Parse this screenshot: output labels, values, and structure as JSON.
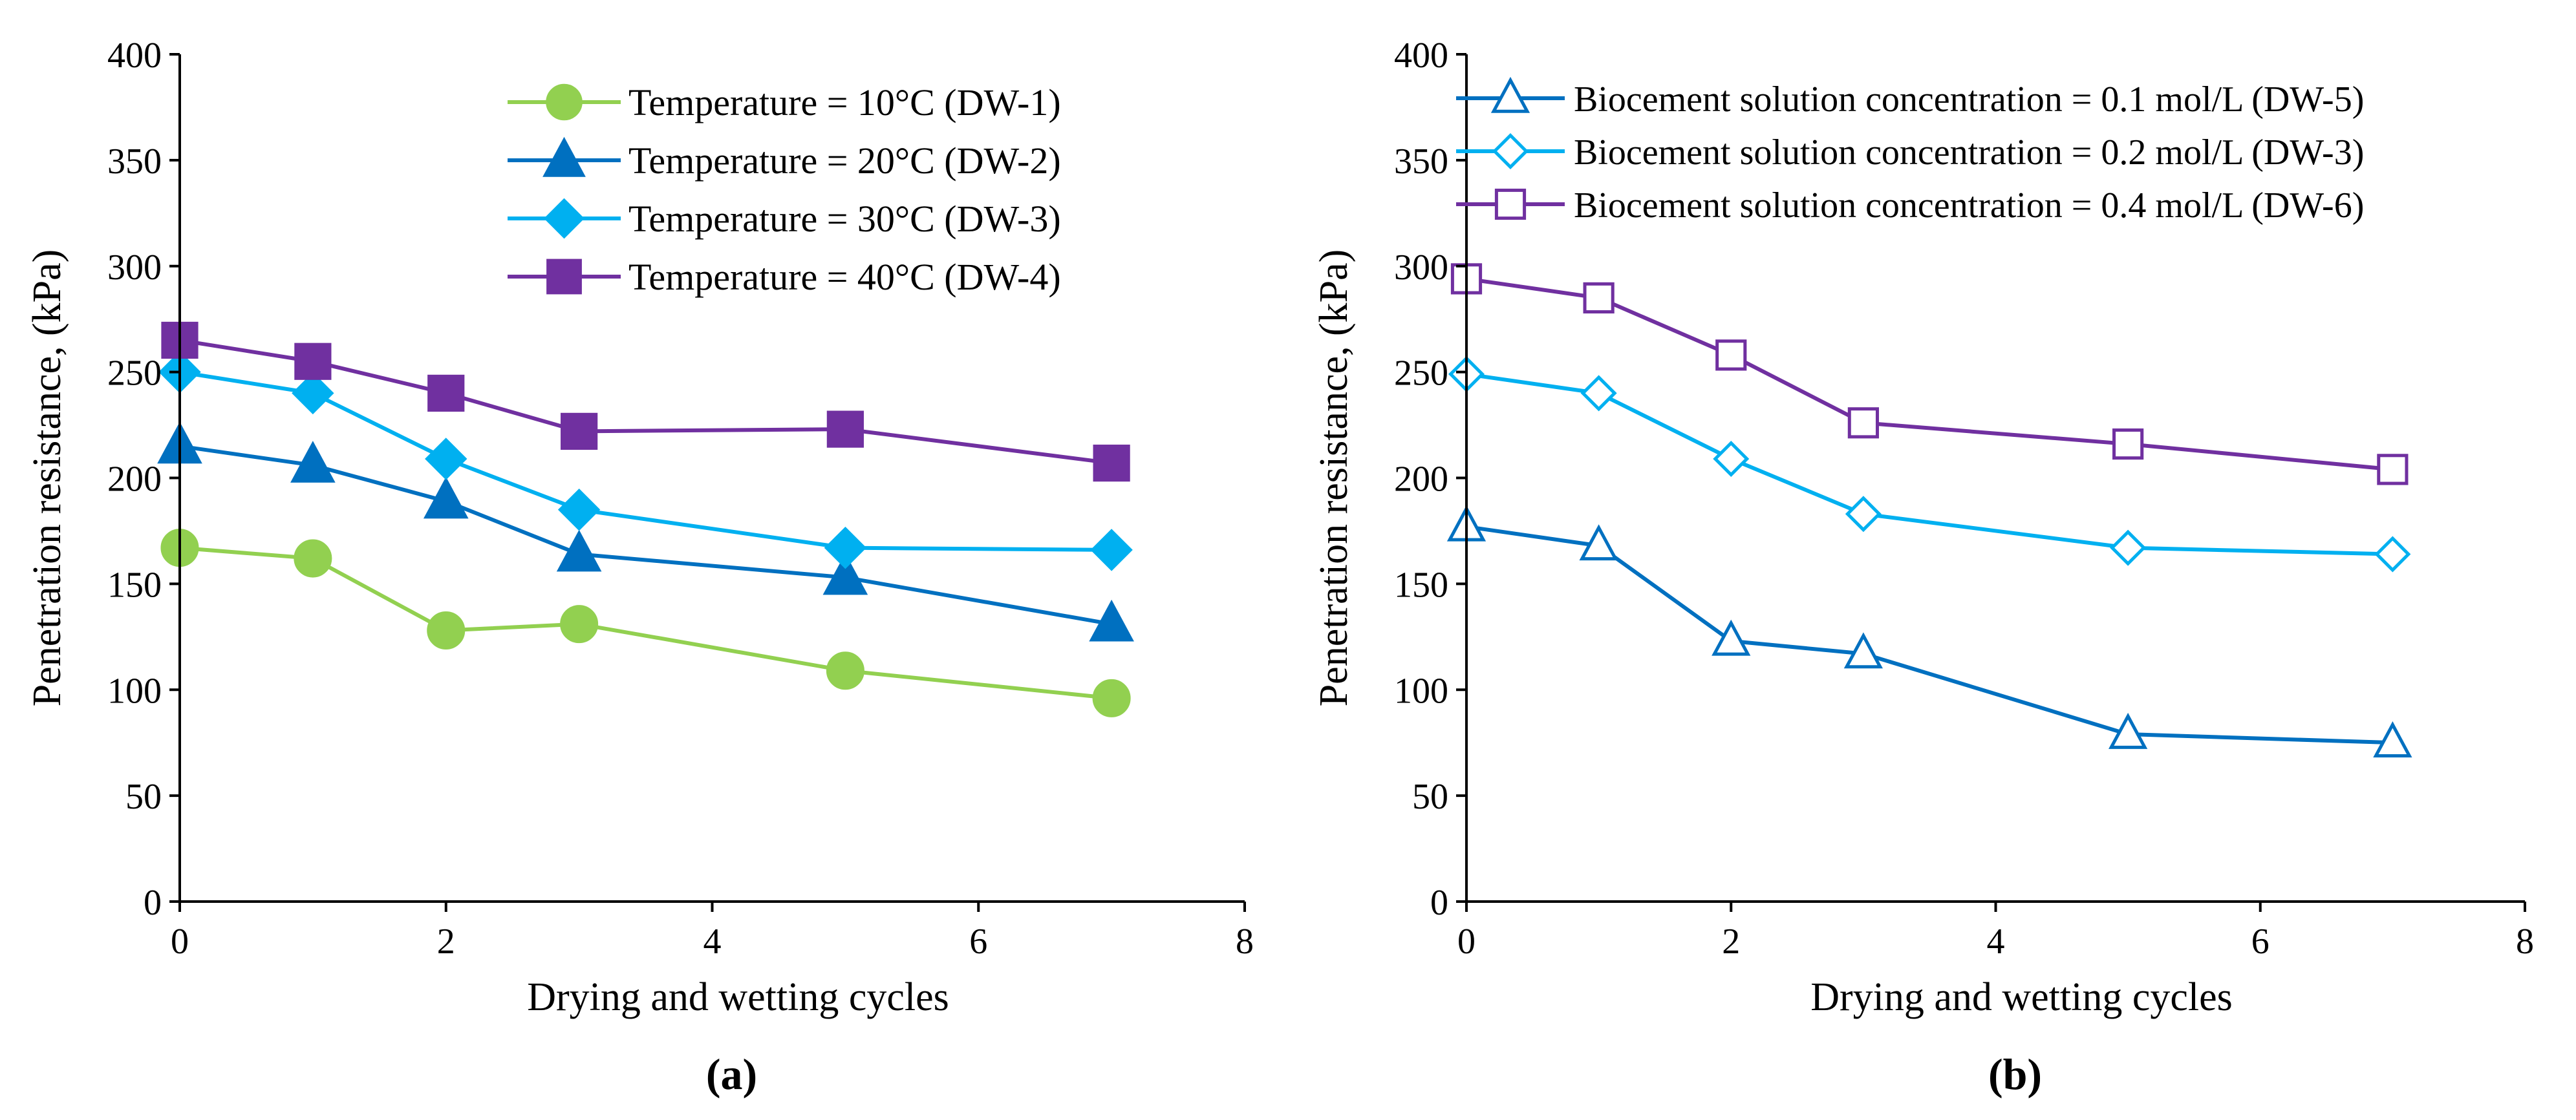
{
  "chart_data": [
    {
      "panel_label": "(a)",
      "type": "line",
      "xlabel": "Drying and wetting cycles",
      "ylabel": "Penetration resistance, (kPa)",
      "xlim": [
        0,
        8
      ],
      "ylim": [
        0,
        400
      ],
      "xticks": [
        0,
        2,
        4,
        6,
        8
      ],
      "yticks": [
        0,
        50,
        100,
        150,
        200,
        250,
        300,
        350,
        400
      ],
      "legend_position": "top-right",
      "x": [
        0,
        1,
        2,
        3,
        5,
        7
      ],
      "series": [
        {
          "name": "Temperature = 10°C (DW-1)",
          "color": "#92D050",
          "marker": "circle",
          "filled": true,
          "values": [
            167,
            162,
            128,
            131,
            109,
            96
          ]
        },
        {
          "name": "Temperature = 20°C (DW-2)",
          "color": "#0070C0",
          "marker": "triangle",
          "filled": true,
          "values": [
            215,
            206,
            189,
            164,
            153,
            131
          ]
        },
        {
          "name": "Temperature = 30°C (DW-3)",
          "color": "#00B0F0",
          "marker": "diamond",
          "filled": true,
          "values": [
            250,
            240,
            209,
            185,
            167,
            166
          ]
        },
        {
          "name": "Temperature = 40°C (DW-4)",
          "color": "#7030A0",
          "marker": "square",
          "filled": true,
          "values": [
            265,
            255,
            240,
            222,
            223,
            207
          ]
        }
      ]
    },
    {
      "panel_label": "(b)",
      "type": "line",
      "xlabel": "Drying and wetting cycles",
      "ylabel": "Penetration resistance, (kPa)",
      "xlim": [
        0,
        8
      ],
      "ylim": [
        0,
        400
      ],
      "xticks": [
        0,
        2,
        4,
        6,
        8
      ],
      "yticks": [
        0,
        50,
        100,
        150,
        200,
        250,
        300,
        350,
        400
      ],
      "legend_position": "top-right",
      "x": [
        0,
        1,
        2,
        3,
        5,
        7
      ],
      "series": [
        {
          "name": "Biocement solution concentration = 0.1 mol/L (DW-5)",
          "color": "#0070C0",
          "marker": "triangle",
          "filled": false,
          "values": [
            177,
            168,
            123,
            117,
            79,
            75
          ]
        },
        {
          "name": "Biocement solution concentration = 0.2 mol/L (DW-3)",
          "color": "#00B0F0",
          "marker": "diamond",
          "filled": false,
          "values": [
            249,
            240,
            209,
            183,
            167,
            164
          ]
        },
        {
          "name": "Biocement solution concentration = 0.4 mol/L (DW-6)",
          "color": "#7030A0",
          "marker": "square",
          "filled": false,
          "values": [
            294,
            285,
            258,
            226,
            216,
            204
          ]
        }
      ]
    }
  ]
}
